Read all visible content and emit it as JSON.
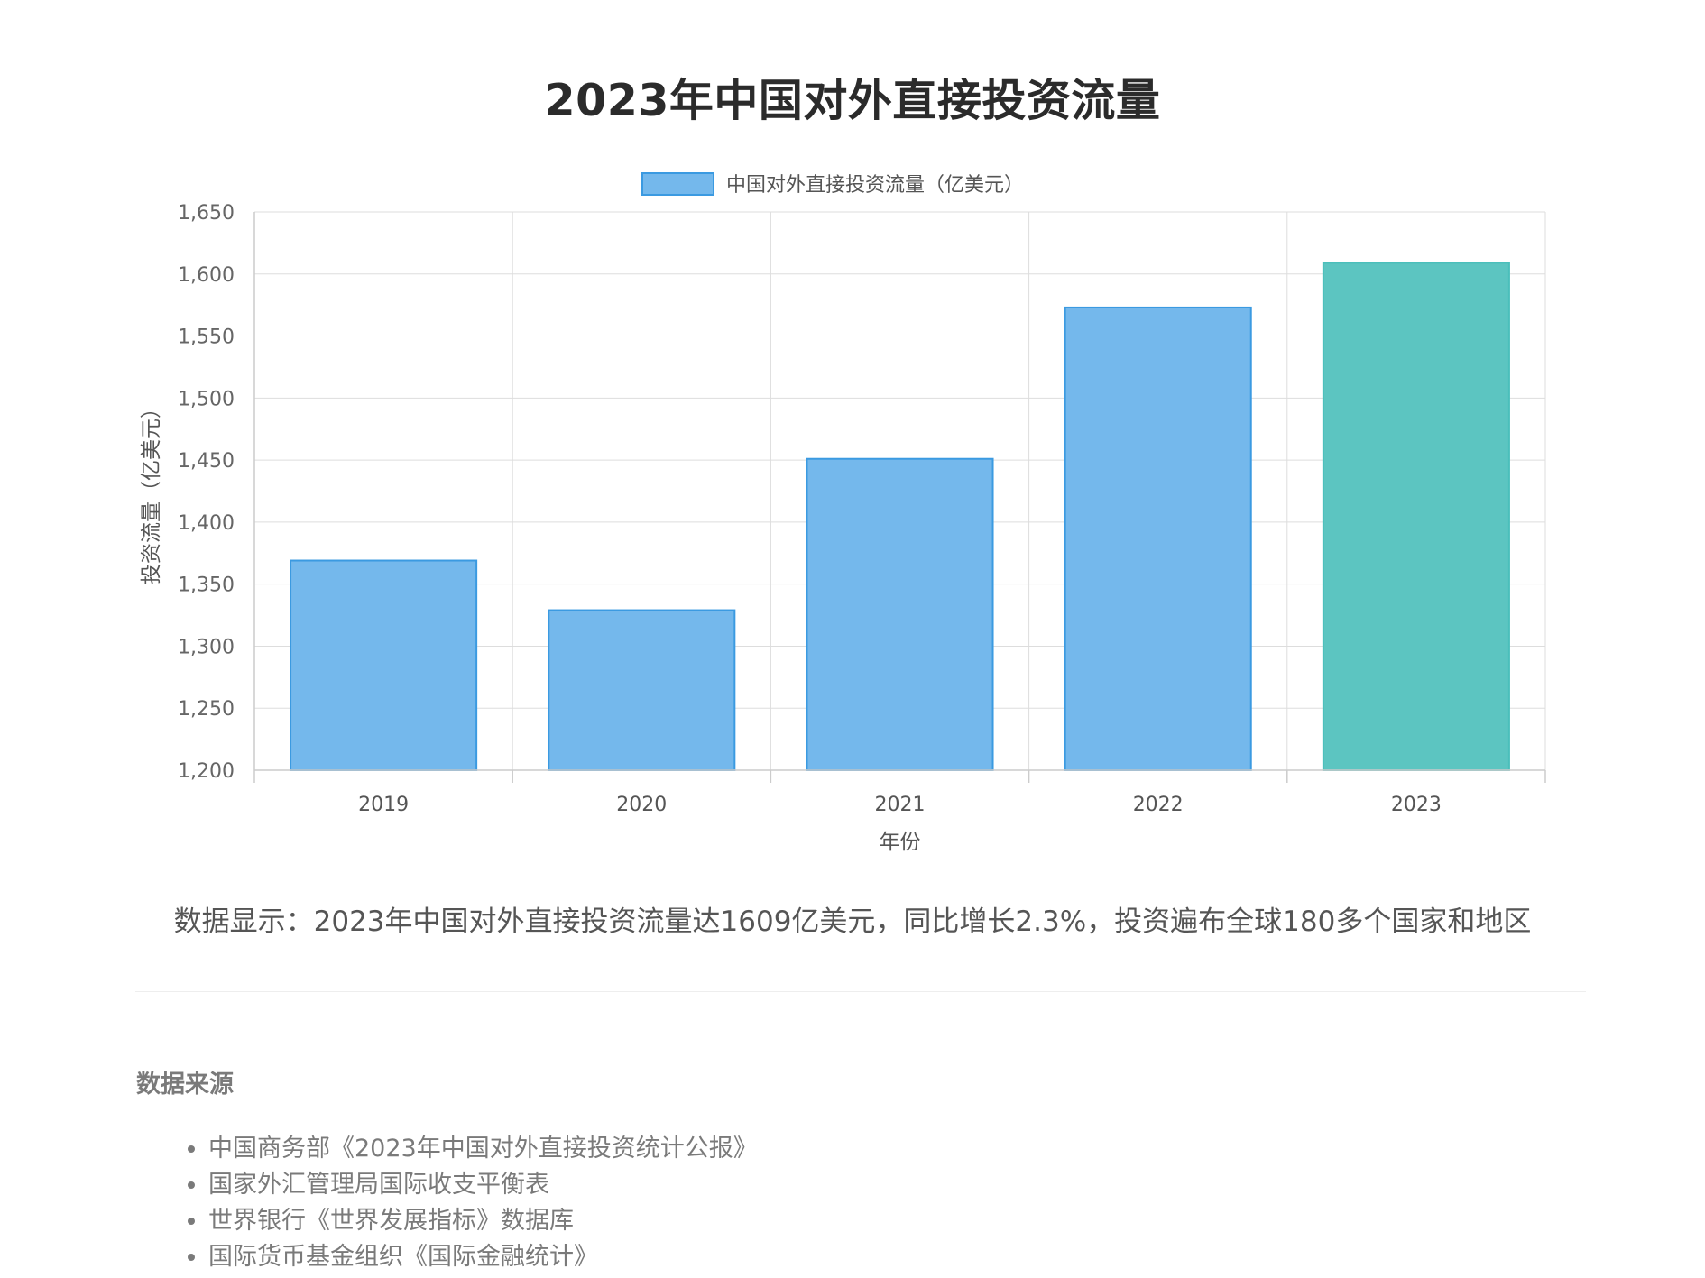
{
  "page": {
    "title": "2023年中国对外直接投资流量",
    "summary": "数据显示：2023年中国对外直接投资流量达1609亿美元，同比增长2.3%，投资遍布全球180多个国家和地区"
  },
  "sources": {
    "heading": "数据来源",
    "items": [
      "中国商务部《2023年中国对外直接投资统计公报》",
      "国家外汇管理局国际收支平衡表",
      "世界银行《世界发展指标》数据库",
      "国际货币基金组织《国际金融统计》"
    ]
  },
  "chart_data": {
    "type": "bar",
    "categories": [
      "2019",
      "2020",
      "2021",
      "2022",
      "2023"
    ],
    "series": [
      {
        "name": "中国对外直接投资流量（亿美元）",
        "values": [
          1369,
          1329,
          1451,
          1573,
          1609
        ]
      }
    ],
    "xlabel": "年份",
    "ylabel": "投资流量（亿美元）",
    "ylim": [
      1200,
      1650
    ],
    "yticks": [
      "1,200",
      "1,250",
      "1,300",
      "1,350",
      "1,400",
      "1,450",
      "1,500",
      "1,550",
      "1,600",
      "1,650"
    ],
    "grid": true,
    "legend_position": "top",
    "colors": {
      "default_fill": "#74b8ec",
      "default_stroke": "#3b9ae1",
      "highlight_fill": "#5cc5c1",
      "highlight_stroke": "#4bbfbb",
      "grid": "#dddddd",
      "axis": "#cccccc"
    },
    "highlight_category": "2023"
  }
}
